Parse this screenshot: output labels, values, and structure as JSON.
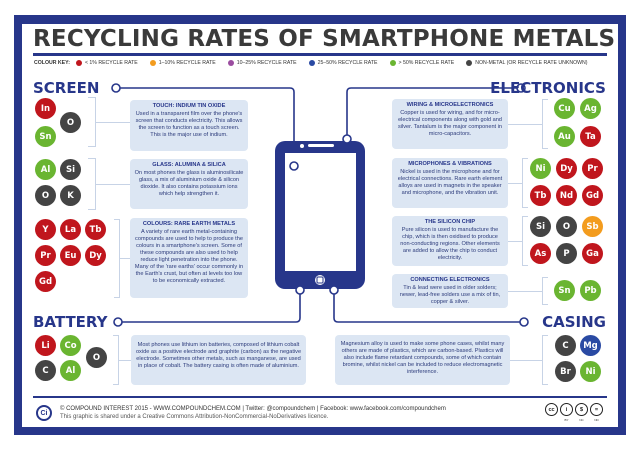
{
  "title": "RECYCLING RATES OF SMARTPHONE METALS",
  "colour_key": {
    "label": "COLOUR KEY:",
    "items": [
      {
        "label": "< 1% RECYCLE RATE",
        "color": "#c0161d"
      },
      {
        "label": "1–10% RECYCLE RATE",
        "color": "#f39c1e"
      },
      {
        "label": "10–25% RECYCLE RATE",
        "color": "#9b4da0"
      },
      {
        "label": "25–50% RECYCLE RATE",
        "color": "#2a4aa3"
      },
      {
        "label": "> 50% RECYCLE RATE",
        "color": "#6ab531"
      },
      {
        "label": "NON-METAL (OR RECYCLE RATE UNKNOWN)",
        "color": "#444444"
      }
    ]
  },
  "colors": {
    "red": "#c0161d",
    "orange": "#f39c1e",
    "purple": "#9b4da0",
    "blue": "#2a4aa3",
    "green": "#6ab531",
    "grey": "#444444",
    "navy": "#27368a"
  },
  "sections": {
    "screen": {
      "title": "SCREEN",
      "groups": [
        {
          "heading": "TOUCH: INDIUM TIN OXIDE",
          "text": "Used in a transparent film over the phone's screen that conducts electricity. This allows the screen to function as a touch screen. This is the major use of indium.",
          "elements": [
            {
              "symbol": "In",
              "rate": "red"
            },
            {
              "symbol": "O",
              "rate": "grey"
            },
            {
              "symbol": "Sn",
              "rate": "green"
            }
          ]
        },
        {
          "heading": "GLASS: ALUMINA & SILICA",
          "text": "On most phones the glass is aluminosilicate glass, a mix of aluminium oxide & silicon dioxide. It also contains potassium ions which help strengthen it.",
          "elements": [
            {
              "symbol": "Al",
              "rate": "green"
            },
            {
              "symbol": "Si",
              "rate": "grey"
            },
            {
              "symbol": "O",
              "rate": "grey"
            },
            {
              "symbol": "K",
              "rate": "grey"
            }
          ]
        },
        {
          "heading": "COLOURS: RARE EARTH METALS",
          "text": "A variety of rare earth metal-containing compounds are used to help to produce the colours in a smartphone's screen. Some of these compounds are also used to help reduce light penetration into the phone. Many of the 'rare earths' occur commonly in the Earth's crust, but often at levels too low to be economically extracted.",
          "elements": [
            {
              "symbol": "Y",
              "rate": "red"
            },
            {
              "symbol": "La",
              "rate": "red"
            },
            {
              "symbol": "Tb",
              "rate": "red"
            },
            {
              "symbol": "Pr",
              "rate": "red"
            },
            {
              "symbol": "Eu",
              "rate": "red"
            },
            {
              "symbol": "Dy",
              "rate": "red"
            },
            {
              "symbol": "Gd",
              "rate": "red"
            }
          ]
        }
      ]
    },
    "battery": {
      "title": "BATTERY",
      "text": "Most phones use lithium ion batteries, composed of lithium cobalt oxide as a positive electrode and graphite (carbon) as the negative electrode. Sometimes other metals, such as manganese, are used in place of cobalt. The battery casing is often made of aluminium.",
      "elements": [
        {
          "symbol": "Li",
          "rate": "red"
        },
        {
          "symbol": "Co",
          "rate": "green"
        },
        {
          "symbol": "O",
          "rate": "grey"
        },
        {
          "symbol": "C",
          "rate": "grey"
        },
        {
          "symbol": "Al",
          "rate": "green"
        }
      ]
    },
    "electronics": {
      "title": "ELECTRONICS",
      "groups": [
        {
          "heading": "WIRING & MICROELECTRONICS",
          "text": "Copper is used for wiring, and for micro-electrical components along with gold and silver. Tantalum is the major component in micro-capacitors.",
          "elements": [
            {
              "symbol": "Cu",
              "rate": "green"
            },
            {
              "symbol": "Ag",
              "rate": "green"
            },
            {
              "symbol": "Au",
              "rate": "green"
            },
            {
              "symbol": "Ta",
              "rate": "red"
            }
          ]
        },
        {
          "heading": "MICROPHONES & VIBRATIONS",
          "text": "Nickel is used in the microphone and for electrical connections. Rare earth element alloys are used in magnets in the speaker and microphone, and the vibration unit.",
          "elements": [
            {
              "symbol": "Ni",
              "rate": "green"
            },
            {
              "symbol": "Dy",
              "rate": "red"
            },
            {
              "symbol": "Pr",
              "rate": "red"
            },
            {
              "symbol": "Tb",
              "rate": "red"
            },
            {
              "symbol": "Nd",
              "rate": "red"
            },
            {
              "symbol": "Gd",
              "rate": "red"
            }
          ]
        },
        {
          "heading": "THE SILICON CHIP",
          "text": "Pure silicon is used to manufacture the chip, which is then oxidised to produce non-conducting regions. Other elements are added to allow the chip to conduct electricity.",
          "elements": [
            {
              "symbol": "Si",
              "rate": "grey"
            },
            {
              "symbol": "O",
              "rate": "grey"
            },
            {
              "symbol": "Sb",
              "rate": "orange"
            },
            {
              "symbol": "As",
              "rate": "red"
            },
            {
              "symbol": "P",
              "rate": "grey"
            },
            {
              "symbol": "Ga",
              "rate": "red"
            }
          ]
        },
        {
          "heading": "CONNECTING ELECTRONICS",
          "text": "Tin & lead were used in older solders; newer, lead-free solders use a mix of tin, copper & silver.",
          "elements": [
            {
              "symbol": "Sn",
              "rate": "green"
            },
            {
              "symbol": "Pb",
              "rate": "green"
            }
          ]
        }
      ]
    },
    "casing": {
      "title": "CASING",
      "text": "Magnesium alloy is used to make some phone cases, whilst many others are made of plastics, which are carbon-based. Plastics will also include flame retardant compounds, some of which contain bromine, whilst nickel can be included to reduce electromagnetic interference.",
      "elements": [
        {
          "symbol": "C",
          "rate": "grey"
        },
        {
          "symbol": "Mg",
          "rate": "blue"
        },
        {
          "symbol": "Br",
          "rate": "grey"
        },
        {
          "symbol": "Ni",
          "rate": "green"
        }
      ]
    }
  },
  "footer": {
    "logo": "Ci",
    "line1": "© COMPOUND INTEREST 2015 - WWW.COMPOUNDCHEM.COM | Twitter: @compoundchem | Facebook: www.facebook.com/compoundchem",
    "line2": "This graphic is shared under a Creative Commons Attribution-NonCommercial-NoDerivatives licence.",
    "licence_icons": [
      {
        "glyph": "cc",
        "label": ""
      },
      {
        "glyph": "i",
        "label": "BY"
      },
      {
        "glyph": "$",
        "label": "NC"
      },
      {
        "glyph": "=",
        "label": "ND"
      }
    ]
  }
}
